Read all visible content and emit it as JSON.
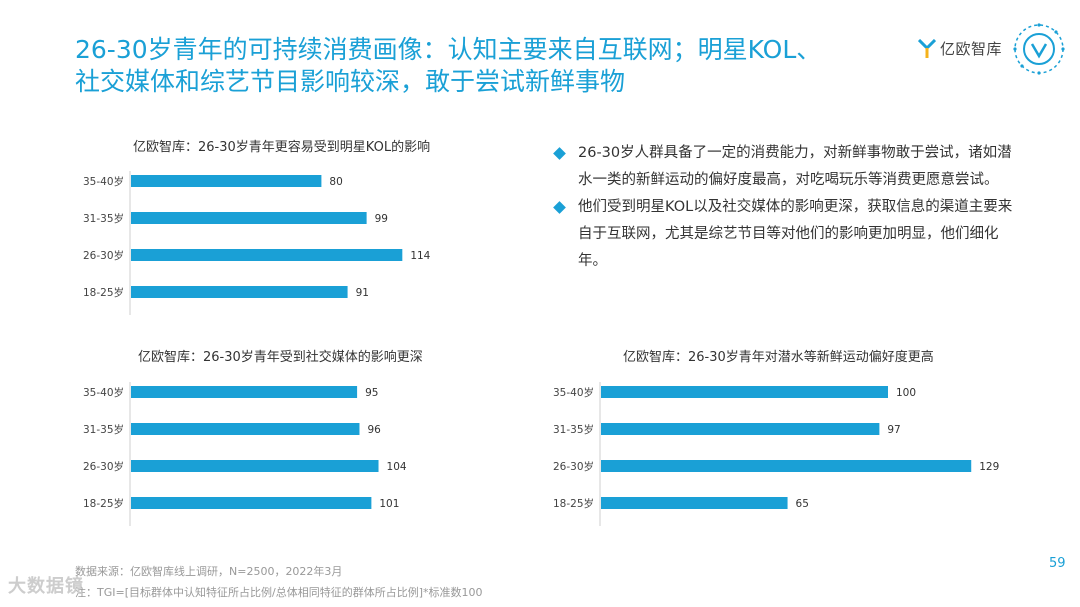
{
  "header": {
    "title_line1": "26-30岁青年的可持续消费画像：认知主要来自互联网；明星KOL、",
    "title_line2": "社交媒体和综艺节目影响较深，敢于尝试新鲜事物",
    "logo_text": "亿欧智库",
    "brand_color": "#1aa0d6"
  },
  "bullets": [
    "26-30岁人群具备了一定的消费能力，对新鲜事物敢于尝试，诸如潜水一类的新鲜运动的偏好度最高，对吃喝玩乐等消费更愿意尝试。",
    "他们受到明星KOL以及社交媒体的影响更深，获取信息的渠道主要来自于互联网，尤其是综艺节目等对他们的影响更加明显，他们细化年。"
  ],
  "footer": {
    "source": "数据来源：亿欧智库线上调研，N=2500，2022年3月",
    "note": "注：TGI=[目标群体中认知特征所占比例/总体相同特征的群体所占比例]*标准数100",
    "page_number": "59",
    "watermark": "大数据镜"
  },
  "chart_data": [
    {
      "type": "bar",
      "orientation": "horizontal",
      "title": "亿欧智库：26-30岁青年更容易受到明星KOL的影响",
      "categories": [
        "35-40岁",
        "31-35岁",
        "26-30岁",
        "18-25岁"
      ],
      "values": [
        80,
        99,
        114,
        91
      ],
      "xlim": [
        0,
        140
      ],
      "color": "#1aa0d6",
      "grid": false
    },
    {
      "type": "bar",
      "orientation": "horizontal",
      "title": "亿欧智库：26-30岁青年受到社交媒体的影响更深",
      "categories": [
        "35-40岁",
        "31-35岁",
        "26-30岁",
        "18-25岁"
      ],
      "values": [
        95,
        96,
        104,
        101
      ],
      "xlim": [
        0,
        140
      ],
      "color": "#1aa0d6",
      "grid": false
    },
    {
      "type": "bar",
      "orientation": "horizontal",
      "title": "亿欧智库：26-30岁青年对潜水等新鲜运动偏好度更高",
      "categories": [
        "35-40岁",
        "31-35岁",
        "26-30岁",
        "18-25岁"
      ],
      "values": [
        100,
        97,
        129,
        65
      ],
      "xlim": [
        0,
        140
      ],
      "color": "#1aa0d6",
      "grid": false
    }
  ]
}
